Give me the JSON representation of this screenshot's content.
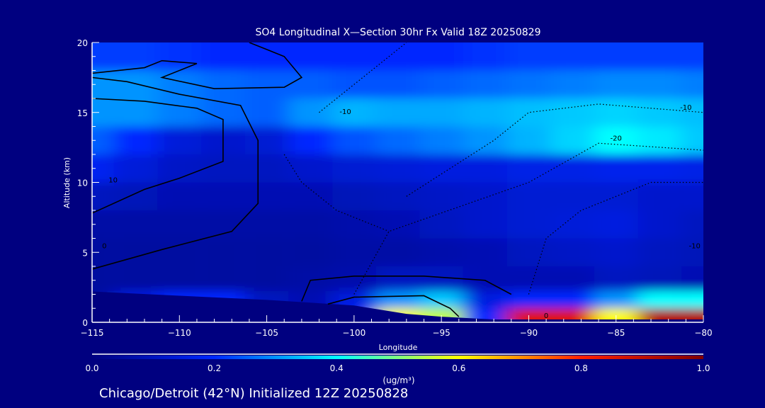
{
  "chart_data": {
    "type": "heatmap",
    "title": "SO4 Longitudinal X—Section 30hr  Fx Valid 18Z 20250829",
    "xlabel": "Longitude",
    "ylabel": "Altitude (km)",
    "xlim": [
      -115,
      -80
    ],
    "ylim": [
      0,
      20
    ],
    "xticks": [
      -115,
      -110,
      -105,
      -100,
      -95,
      -90,
      -85,
      -80
    ],
    "xtick_labels": [
      "−115",
      "−110",
      "−105",
      "−100",
      "−95",
      "−90",
      "−85",
      "−80"
    ],
    "yticks": [
      0,
      5,
      10,
      15,
      20
    ],
    "ytick_labels": [
      "0",
      "5",
      "10",
      "15",
      "20"
    ],
    "grid": false,
    "lon": [
      -115,
      -112.5,
      -110,
      -107.5,
      -105,
      -102.5,
      -100,
      -97.5,
      -95,
      -92.5,
      -90,
      -87.5,
      -85,
      -82.5,
      -80
    ],
    "alt": [
      0.5,
      1.5,
      3,
      5,
      7,
      9,
      11,
      13,
      15,
      17,
      19
    ],
    "values": [
      [
        0.05,
        0.05,
        0.05,
        0.05,
        0.05,
        0.05,
        0.2,
        0.6,
        0.55,
        0.2,
        0.85,
        0.85,
        0.6,
        0.92,
        0.92
      ],
      [
        0.05,
        0.15,
        0.2,
        0.2,
        0.1,
        0.08,
        0.15,
        0.3,
        0.35,
        0.15,
        0.2,
        0.2,
        0.3,
        0.4,
        0.4
      ],
      [
        0.05,
        0.05,
        0.05,
        0.05,
        0.05,
        0.06,
        0.07,
        0.1,
        0.1,
        0.08,
        0.08,
        0.08,
        0.1,
        0.09,
        0.08
      ],
      [
        0.05,
        0.05,
        0.05,
        0.05,
        0.05,
        0.05,
        0.06,
        0.06,
        0.07,
        0.08,
        0.1,
        0.11,
        0.12,
        0.1,
        0.09
      ],
      [
        0.06,
        0.06,
        0.06,
        0.06,
        0.06,
        0.06,
        0.07,
        0.08,
        0.1,
        0.12,
        0.13,
        0.14,
        0.15,
        0.12,
        0.1
      ],
      [
        0.1,
        0.09,
        0.08,
        0.08,
        0.08,
        0.08,
        0.09,
        0.1,
        0.11,
        0.12,
        0.13,
        0.13,
        0.13,
        0.12,
        0.12
      ],
      [
        0.18,
        0.14,
        0.11,
        0.1,
        0.1,
        0.12,
        0.13,
        0.14,
        0.15,
        0.15,
        0.16,
        0.16,
        0.17,
        0.17,
        0.16
      ],
      [
        0.25,
        0.2,
        0.14,
        0.12,
        0.13,
        0.2,
        0.24,
        0.26,
        0.28,
        0.3,
        0.33,
        0.36,
        0.4,
        0.38,
        0.35
      ],
      [
        0.3,
        0.3,
        0.28,
        0.26,
        0.25,
        0.3,
        0.33,
        0.32,
        0.32,
        0.33,
        0.34,
        0.35,
        0.36,
        0.35,
        0.34
      ],
      [
        0.3,
        0.3,
        0.28,
        0.26,
        0.25,
        0.25,
        0.24,
        0.24,
        0.25,
        0.26,
        0.27,
        0.28,
        0.29,
        0.29,
        0.28
      ],
      [
        0.22,
        0.22,
        0.21,
        0.2,
        0.2,
        0.2,
        0.2,
        0.2,
        0.2,
        0.21,
        0.22,
        0.22,
        0.22,
        0.22,
        0.22
      ]
    ],
    "terrain": [
      [
        -115,
        2.2
      ],
      [
        -110,
        1.9
      ],
      [
        -105,
        1.6
      ],
      [
        -100,
        1.2
      ],
      [
        -97,
        0.6
      ],
      [
        -95,
        0.4
      ],
      [
        -92,
        0.2
      ],
      [
        -90,
        0.2
      ],
      [
        -80,
        0.2
      ]
    ],
    "contours": [
      {
        "style": "solid",
        "points": [
          [
            -115,
            7.8
          ],
          [
            -112,
            9.5
          ],
          [
            -110,
            10.3
          ],
          [
            -107.5,
            11.5
          ],
          [
            -107.5,
            14.5
          ],
          [
            -109,
            15.3
          ],
          [
            -112,
            15.8
          ],
          [
            -115,
            16
          ]
        ]
      },
      {
        "style": "solid",
        "points": [
          [
            -115,
            3.8
          ],
          [
            -111,
            5.2
          ],
          [
            -107,
            6.5
          ],
          [
            -105.5,
            8.5
          ],
          [
            -105.5,
            13
          ],
          [
            -106.5,
            15.5
          ],
          [
            -110,
            16.3
          ],
          [
            -113,
            17.2
          ],
          [
            -115,
            17.5
          ]
        ]
      },
      {
        "style": "solid",
        "points": [
          [
            -115,
            17.8
          ],
          [
            -112,
            18.2
          ],
          [
            -111,
            18.7
          ],
          [
            -109,
            18.5
          ],
          [
            -111,
            17.5
          ],
          [
            -108,
            16.7
          ],
          [
            -104,
            16.8
          ],
          [
            -103,
            17.5
          ],
          [
            -104,
            19
          ],
          [
            -106,
            20
          ]
        ]
      },
      {
        "style": "solid",
        "points": [
          [
            -103,
            1.5
          ],
          [
            -102.5,
            3
          ],
          [
            -100,
            3.3
          ],
          [
            -96,
            3.3
          ],
          [
            -92.5,
            3
          ],
          [
            -91,
            2
          ]
        ]
      },
      {
        "style": "solid",
        "points": [
          [
            -101.5,
            1.3
          ],
          [
            -100,
            1.8
          ],
          [
            -96,
            1.9
          ],
          [
            -94.5,
            1
          ],
          [
            -94,
            0.4
          ]
        ]
      },
      {
        "style": "dotted",
        "points": [
          [
            -102,
            15
          ],
          [
            -100,
            17
          ],
          [
            -98,
            19
          ],
          [
            -97,
            20
          ]
        ]
      },
      {
        "style": "dotted",
        "points": [
          [
            -97,
            9
          ],
          [
            -92,
            13
          ],
          [
            -90,
            15
          ],
          [
            -86,
            15.6
          ],
          [
            -80,
            15
          ]
        ]
      },
      {
        "style": "dotted",
        "points": [
          [
            -100,
            2
          ],
          [
            -98,
            6.5
          ],
          [
            -90,
            10
          ],
          [
            -86,
            12.8
          ],
          [
            -80,
            12.3
          ]
        ]
      },
      {
        "style": "dotted",
        "points": [
          [
            -90,
            2
          ],
          [
            -89,
            6
          ],
          [
            -87,
            8
          ],
          [
            -83,
            10
          ],
          [
            -80,
            10
          ]
        ]
      },
      {
        "style": "dotted",
        "points": [
          [
            -104,
            12
          ],
          [
            -103,
            10
          ],
          [
            -101,
            8
          ],
          [
            -98,
            6.5
          ]
        ]
      }
    ],
    "contour_labels": [
      {
        "text": "-10",
        "lon": -100.5,
        "alt": 15.1
      },
      {
        "text": "-20",
        "lon": -85,
        "alt": 13.2
      },
      {
        "text": "-10",
        "lon": -81,
        "alt": 15.4
      },
      {
        "text": "-10",
        "lon": -80.5,
        "alt": 5.5
      },
      {
        "text": "10",
        "lon": -113.8,
        "alt": 10.2
      },
      {
        "text": "0",
        "lon": -114.3,
        "alt": 5.5
      },
      {
        "text": "0",
        "lon": -89,
        "alt": 0.5
      }
    ],
    "colorbar": {
      "range": [
        0.0,
        1.0
      ],
      "ticks": [
        0.0,
        0.2,
        0.4,
        0.6,
        0.8,
        1.0
      ],
      "tick_labels": [
        "0.0",
        "0.2",
        "0.4",
        "0.6",
        "0.8",
        "1.0"
      ],
      "unit": "(ug/m³)",
      "colors": [
        "#000080",
        "#0028ff",
        "#00ffff",
        "#ffff00",
        "#ff2000",
        "#800000"
      ]
    }
  },
  "footer": "Chicago/Detroit (42°N) Initialized 12Z 20250828"
}
